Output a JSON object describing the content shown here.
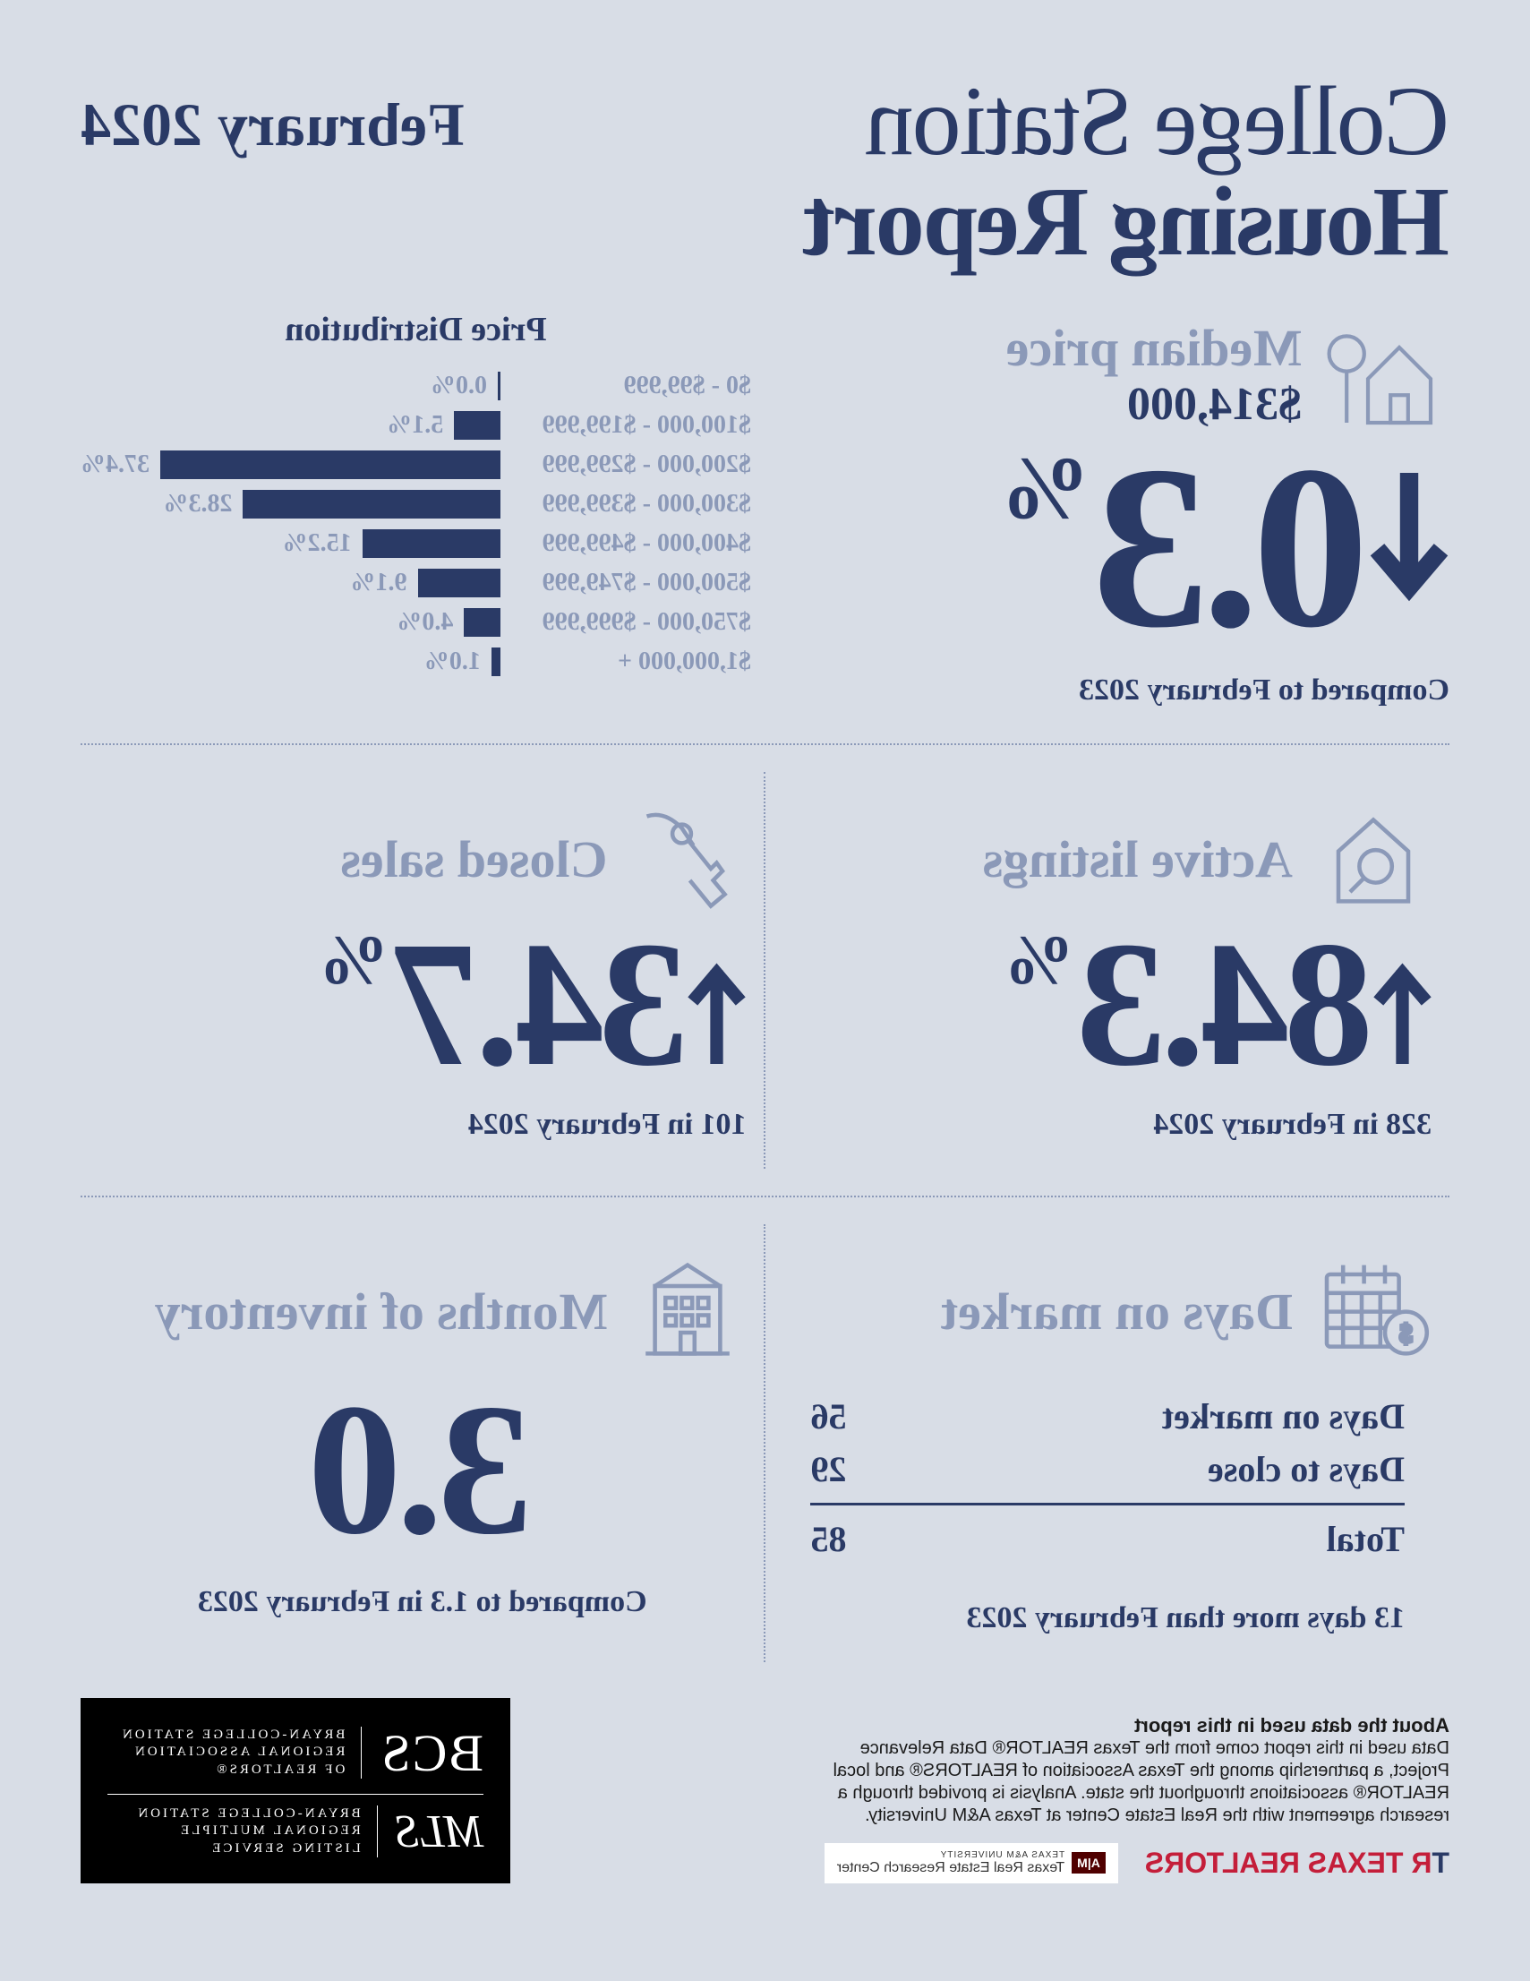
{
  "title": {
    "line1": "College Station",
    "line2": "Housing Report"
  },
  "date_label": "February 2024",
  "median": {
    "title": "Median price",
    "value": "$314,000",
    "change": "0.3",
    "pct": "%",
    "direction": "down",
    "compare": "Compared to February 2023"
  },
  "distribution": {
    "title": "Price Distribution",
    "max_pct": 37.4,
    "rows": [
      {
        "range": "$0 - $99,999",
        "pct": 0.0,
        "label": "0.0%"
      },
      {
        "range": "$100,000 - $199,999",
        "pct": 5.1,
        "label": "5.1%"
      },
      {
        "range": "$200,000 - $299,999",
        "pct": 37.4,
        "label": "37.4%"
      },
      {
        "range": "$300,000 - $399,999",
        "pct": 28.3,
        "label": "28.3%"
      },
      {
        "range": "$400,000 - $499,999",
        "pct": 15.2,
        "label": "15.2%"
      },
      {
        "range": "$500,000 - $749,999",
        "pct": 9.1,
        "label": "9.1%"
      },
      {
        "range": "$750,000 - $999,999",
        "pct": 4.0,
        "label": "4.0%"
      },
      {
        "range": "$1,000,000 +",
        "pct": 1.0,
        "label": "1.0%"
      }
    ]
  },
  "active": {
    "title": "Active listings",
    "change": "84.3",
    "pct": "%",
    "sub": "328 in February 2024"
  },
  "closed": {
    "title": "Closed sales",
    "change": "34.7",
    "pct": "%",
    "sub": "101 in February 2024"
  },
  "dom": {
    "title": "Days on market",
    "row1_label": "Days on market",
    "row1_val": "56",
    "row2_label": "Days to close",
    "row2_val": "29",
    "total_label": "Total",
    "total_val": "85",
    "sub": "13 days more than February 2023"
  },
  "inventory": {
    "title": "Months of inventory",
    "value": "3.0",
    "sub": "Compared to 1.3 in February 2023"
  },
  "footer": {
    "about_title": "About the data used in this report",
    "about_text": "Data used in this report come from the Texas REALTOR® Data Relevance Project, a partnership among the Texas Association of REALTORS® and local REALTOR® associations throughout the state. Analysis is provided through a research agreement with the Real Estate Center at Texas A&M University.",
    "tr_logo": "TEXAS REALTORS",
    "trec_top": "TEXAS A&M UNIVERSITY",
    "trec_bottom": "Texas Real Estate Research Center",
    "bcs": "BCS",
    "bcs_sub": "BRYAN-COLLEGE STATION\nREGIONAL ASSOCIATION\nOF REALTORS®",
    "mls": "MLS",
    "mls_sub": "BRYAN-COLLEGE STATION\nREGIONAL MULTIPLE\nLISTING SERVICE"
  },
  "colors": {
    "primary": "#2a3a66",
    "muted": "#8b99b8",
    "bg": "#d8dde6",
    "bar": "#2a3a66"
  }
}
